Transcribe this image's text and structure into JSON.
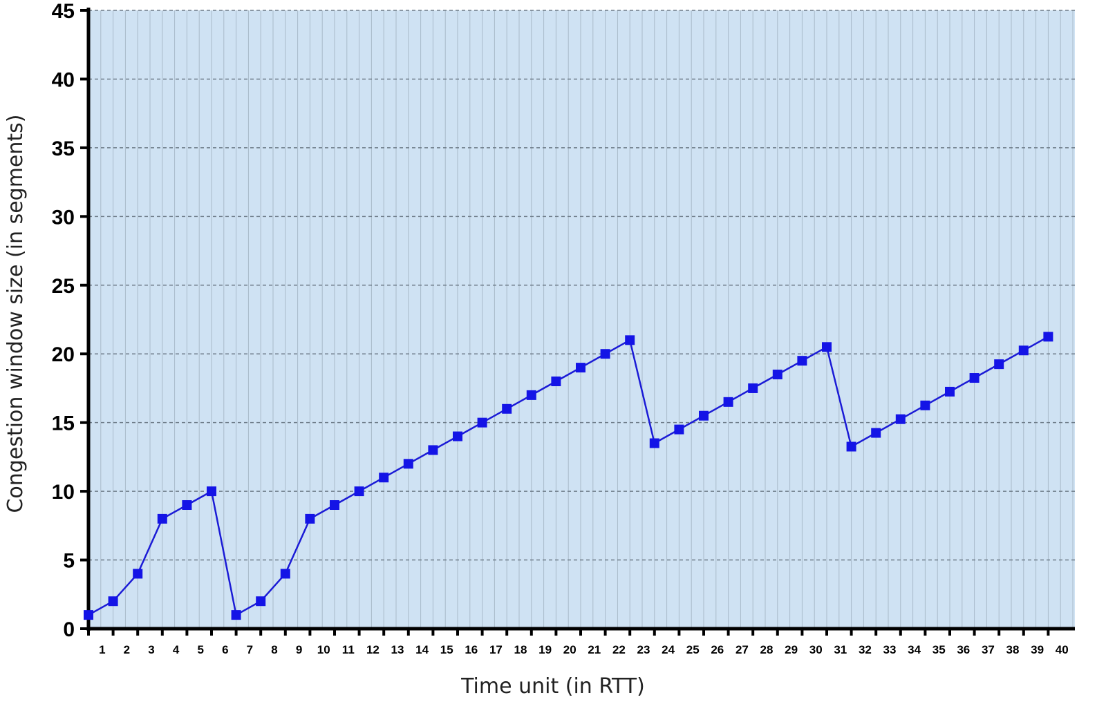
{
  "chart_data": {
    "type": "line",
    "title": "",
    "xlabel": "Time unit (in RTT)",
    "ylabel": "Congestion window size (in segments)",
    "xlim": [
      0.5,
      40.5
    ],
    "ylim": [
      0,
      45
    ],
    "x_ticks": [
      1,
      2,
      3,
      4,
      5,
      6,
      7,
      8,
      9,
      10,
      11,
      12,
      13,
      14,
      15,
      16,
      17,
      18,
      19,
      20,
      21,
      22,
      23,
      24,
      25,
      26,
      27,
      28,
      29,
      30,
      31,
      32,
      33,
      34,
      35,
      36,
      37,
      38,
      39,
      40
    ],
    "y_ticks": [
      0,
      5,
      10,
      15,
      20,
      25,
      30,
      35,
      40,
      45
    ],
    "grid": true,
    "legend": "none",
    "series": [
      {
        "name": "",
        "color": "#1b1bd6",
        "x": [
          0.5,
          1.5,
          2.5,
          3.5,
          4.5,
          5.5,
          6.5,
          7.5,
          8.5,
          9.5,
          10.5,
          11.5,
          12.5,
          13.5,
          14.5,
          15.5,
          16.5,
          17.5,
          18.5,
          19.5,
          20.5,
          21.5,
          22.5,
          23.5,
          24.5,
          25.5,
          26.5,
          27.5,
          28.5,
          29.5,
          30.5,
          31.5,
          32.5,
          33.5,
          34.5,
          35.5,
          36.5,
          37.5,
          38.5,
          39.5
        ],
        "y": [
          1,
          2,
          4,
          8,
          9,
          10,
          1,
          2,
          4,
          8,
          9,
          10,
          11,
          12,
          13,
          14,
          15,
          16,
          17,
          18,
          19,
          20,
          21,
          13.5,
          14.5,
          15.5,
          16.5,
          17.5,
          18.5,
          19.5,
          20.5,
          13.25,
          14.25,
          15.25,
          16.25,
          17.25,
          18.25,
          19.25,
          20.25,
          21.25
        ]
      }
    ]
  },
  "colors": {
    "plot_background": "#cfe2f3",
    "grid_line": "#8a9aa8",
    "axis": "#000000",
    "line": "#1b1bd6",
    "marker": "#1414e6"
  }
}
